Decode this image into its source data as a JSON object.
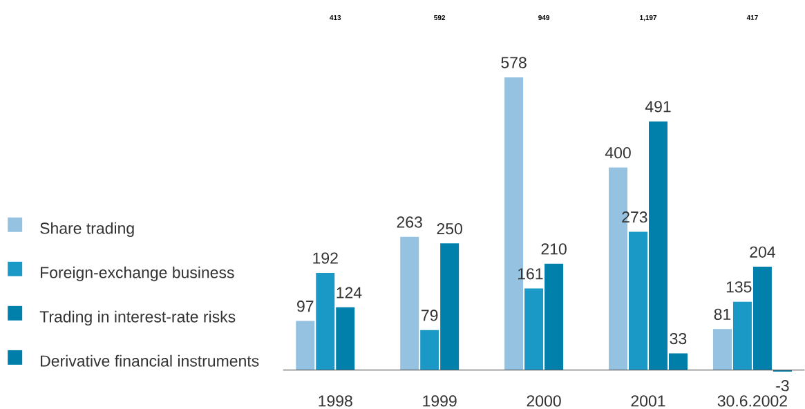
{
  "chart_data": {
    "type": "bar",
    "categories": [
      "1998",
      "1999",
      "2000",
      "2001",
      "30.6.2002"
    ],
    "series": [
      {
        "name": "Share trading",
        "color": "#95c2e0",
        "values": [
          97,
          263,
          578,
          400,
          81
        ]
      },
      {
        "name": "Foreign-exchange business",
        "color": "#1a99c6",
        "values": [
          192,
          79,
          161,
          273,
          135
        ]
      },
      {
        "name": "Trading in interest-rate risks",
        "color": "#0080ab",
        "values": [
          124,
          250,
          210,
          491,
          204
        ]
      },
      {
        "name": "Derivative financial instruments",
        "color": "#007eaa",
        "values": [
          null,
          null,
          null,
          33,
          -3
        ]
      }
    ],
    "tick_labels": "x",
    "data_labels": true,
    "legend": "left",
    "annotations": [
      "413",
      "592",
      "949",
      "1,197",
      "417"
    ]
  }
}
